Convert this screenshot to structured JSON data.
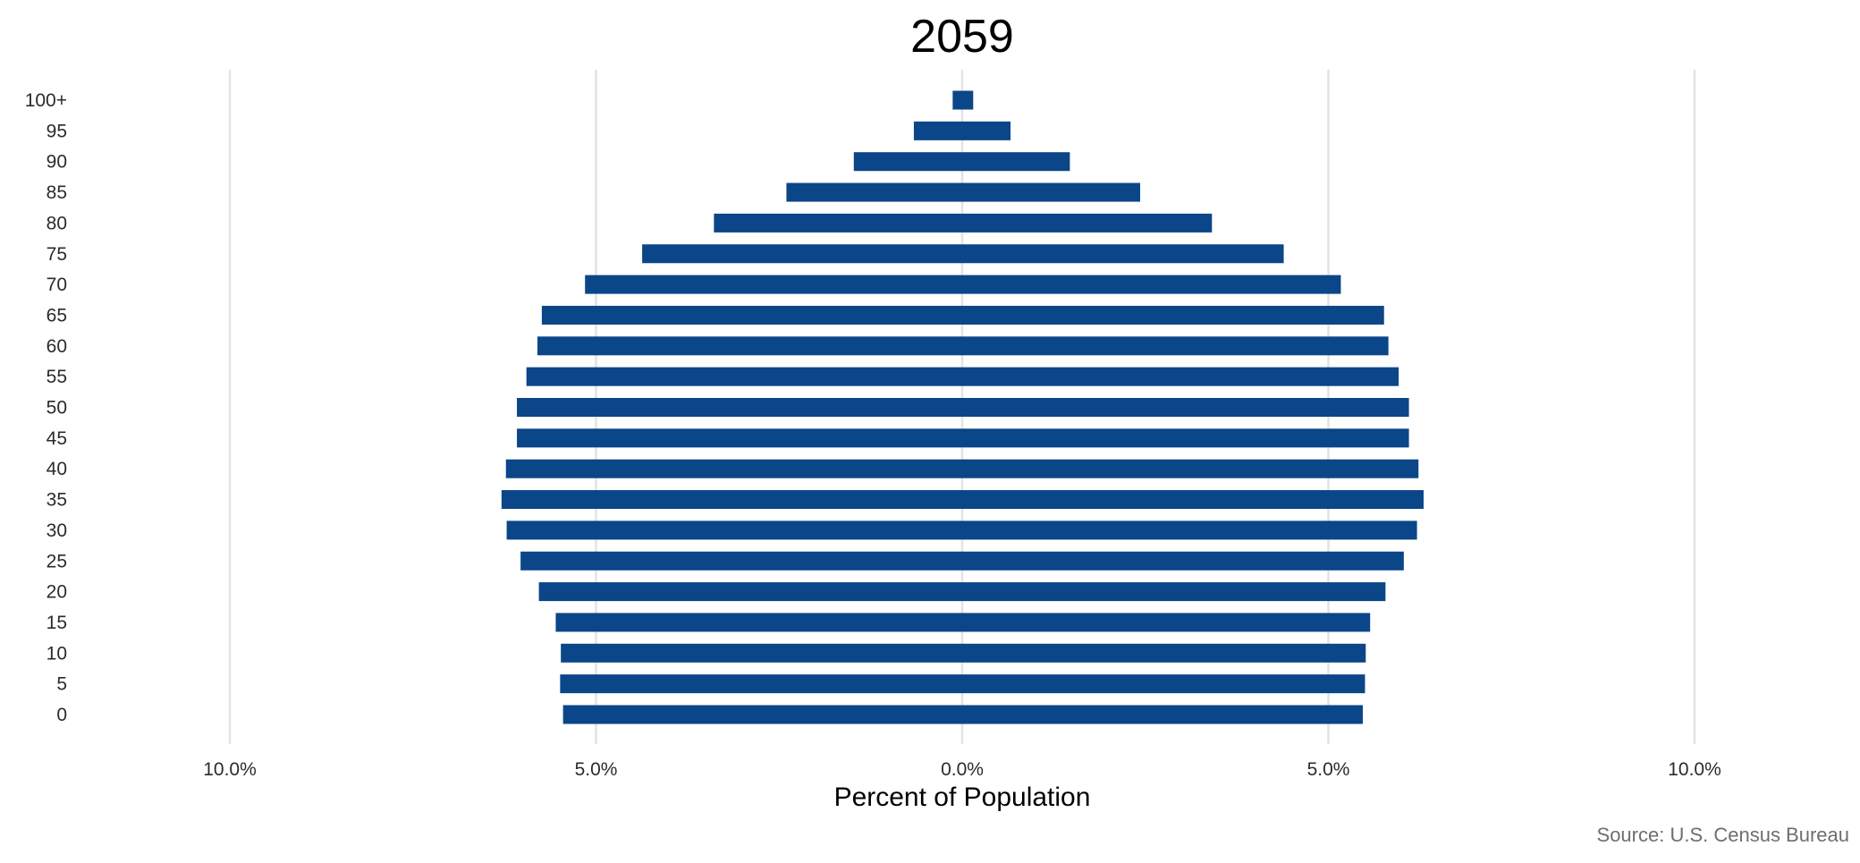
{
  "chart_data": {
    "type": "bar",
    "orientation": "horizontal-diverging",
    "title": "2059",
    "xlabel": "Percent of Population",
    "ylabel": "",
    "caption": "Source: U.S. Census Bureau",
    "xlim": [
      -10.0,
      10.0
    ],
    "x_ticks": [
      -10,
      -5,
      0,
      5,
      10
    ],
    "x_tick_labels": [
      "10.0%",
      "5.0%",
      "0.0%",
      "5.0%",
      "10.0%"
    ],
    "grid": "vertical",
    "bar_color": "#0a4688",
    "grid_color": "#e3e3e3",
    "categories": [
      "0",
      "5",
      "10",
      "15",
      "20",
      "25",
      "30",
      "35",
      "40",
      "45",
      "50",
      "55",
      "60",
      "65",
      "70",
      "75",
      "80",
      "85",
      "90",
      "95",
      "100+"
    ],
    "series": [
      {
        "side": "left",
        "values": [
          5.45,
          5.49,
          5.48,
          5.55,
          5.78,
          6.03,
          6.22,
          6.29,
          6.23,
          6.08,
          6.08,
          5.95,
          5.8,
          5.74,
          5.15,
          4.37,
          3.39,
          2.4,
          1.48,
          0.66,
          0.13
        ]
      },
      {
        "side": "right",
        "values": [
          5.47,
          5.5,
          5.51,
          5.57,
          5.78,
          6.03,
          6.21,
          6.3,
          6.23,
          6.1,
          6.1,
          5.96,
          5.82,
          5.76,
          5.17,
          4.39,
          3.41,
          2.43,
          1.47,
          0.66,
          0.15
        ]
      }
    ]
  }
}
